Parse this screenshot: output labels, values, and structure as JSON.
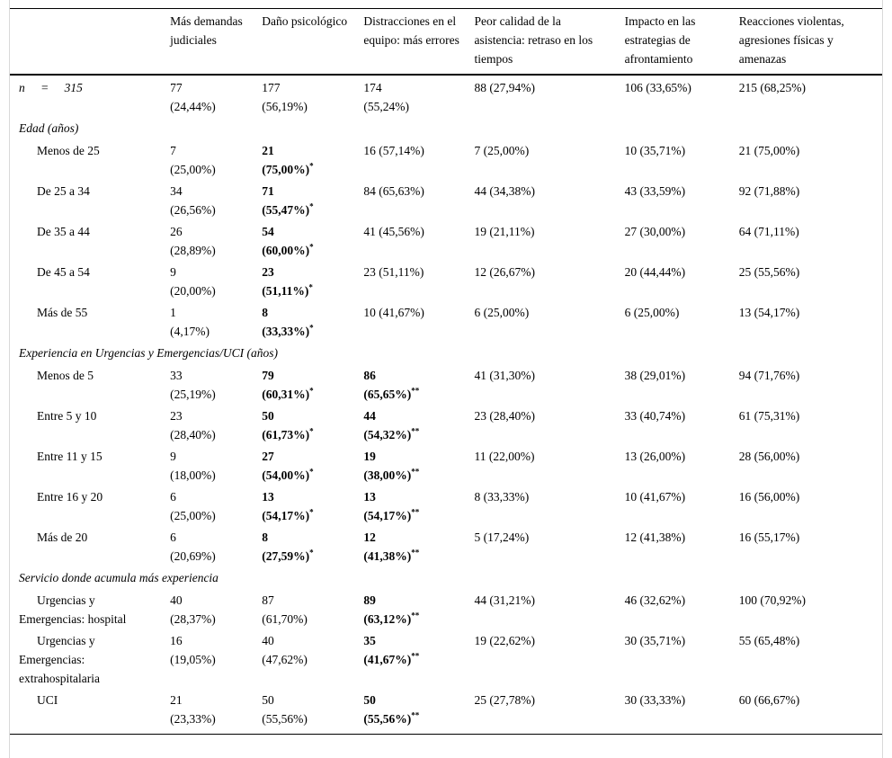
{
  "table": {
    "corner_label": "",
    "columns": [
      "Más demandas judiciales",
      "Daño psicológico",
      "Distracciones en el equipo: más errores",
      "Peor calidad de la asistencia: retraso en los tiempos",
      "Impacto en las estrategias de afrontamiento",
      "Reacciones violentas, agresiones físicas y amenazas"
    ],
    "rows": [
      {
        "type": "data",
        "style": "stat",
        "label": "n = 315",
        "cells": [
          {
            "lines": [
              "77",
              "(24,44%)"
            ]
          },
          {
            "lines": [
              "177",
              "(56,19%)"
            ]
          },
          {
            "lines": [
              "174",
              "(55,24%)"
            ]
          },
          {
            "lines": [
              "88 (27,94%)"
            ]
          },
          {
            "lines": [
              "106 (33,65%)"
            ]
          },
          {
            "lines": [
              "215 (68,25%)"
            ]
          }
        ]
      },
      {
        "type": "section",
        "label": "Edad (años)"
      },
      {
        "type": "data",
        "label": "Menos de 25",
        "cells": [
          {
            "lines": [
              "7",
              "(25,00%)"
            ]
          },
          {
            "lines": [
              "21",
              "(75,00%)"
            ],
            "bold": true,
            "sup": "*"
          },
          {
            "lines": [
              "16 (57,14%)"
            ]
          },
          {
            "lines": [
              "7 (25,00%)"
            ]
          },
          {
            "lines": [
              "10 (35,71%)"
            ]
          },
          {
            "lines": [
              "21 (75,00%)"
            ]
          }
        ]
      },
      {
        "type": "data",
        "label": "De 25 a 34",
        "cells": [
          {
            "lines": [
              "34",
              "(26,56%)"
            ]
          },
          {
            "lines": [
              "71",
              "(55,47%)"
            ],
            "bold": true,
            "sup": "*"
          },
          {
            "lines": [
              "84 (65,63%)"
            ]
          },
          {
            "lines": [
              "44 (34,38%)"
            ]
          },
          {
            "lines": [
              "43 (33,59%)"
            ]
          },
          {
            "lines": [
              "92 (71,88%)"
            ]
          }
        ]
      },
      {
        "type": "data",
        "label": "De 35 a 44",
        "cells": [
          {
            "lines": [
              "26",
              "(28,89%)"
            ]
          },
          {
            "lines": [
              "54",
              "(60,00%)"
            ],
            "bold": true,
            "sup": "*"
          },
          {
            "lines": [
              "41 (45,56%)"
            ]
          },
          {
            "lines": [
              "19 (21,11%)"
            ]
          },
          {
            "lines": [
              "27 (30,00%)"
            ]
          },
          {
            "lines": [
              "64 (71,11%)"
            ]
          }
        ]
      },
      {
        "type": "data",
        "label": "De 45 a 54",
        "cells": [
          {
            "lines": [
              "9",
              "(20,00%)"
            ]
          },
          {
            "lines": [
              "23",
              "(51,11%)"
            ],
            "bold": true,
            "sup": "*"
          },
          {
            "lines": [
              "23 (51,11%)"
            ]
          },
          {
            "lines": [
              "12 (26,67%)"
            ]
          },
          {
            "lines": [
              "20 (44,44%)"
            ]
          },
          {
            "lines": [
              "25 (55,56%)"
            ]
          }
        ]
      },
      {
        "type": "data",
        "label": "Más de 55",
        "cells": [
          {
            "lines": [
              "1",
              "(4,17%)"
            ]
          },
          {
            "lines": [
              "8",
              "(33,33%)"
            ],
            "bold": true,
            "sup": "*"
          },
          {
            "lines": [
              "10 (41,67%)"
            ]
          },
          {
            "lines": [
              "6 (25,00%)"
            ]
          },
          {
            "lines": [
              "6 (25,00%)"
            ]
          },
          {
            "lines": [
              "13 (54,17%)"
            ]
          }
        ]
      },
      {
        "type": "section",
        "label": "Experiencia en Urgencias y Emergencias/UCI (años)"
      },
      {
        "type": "data",
        "label": "Menos de 5",
        "cells": [
          {
            "lines": [
              "33",
              "(25,19%)"
            ]
          },
          {
            "lines": [
              "79",
              "(60,31%)"
            ],
            "bold": true,
            "sup": "*"
          },
          {
            "lines": [
              "86",
              "(65,65%)"
            ],
            "bold": true,
            "sup": "**"
          },
          {
            "lines": [
              "41 (31,30%)"
            ]
          },
          {
            "lines": [
              "38 (29,01%)"
            ]
          },
          {
            "lines": [
              "94 (71,76%)"
            ]
          }
        ]
      },
      {
        "type": "data",
        "label": "Entre 5 y 10",
        "cells": [
          {
            "lines": [
              "23",
              "(28,40%)"
            ]
          },
          {
            "lines": [
              "50",
              "(61,73%)"
            ],
            "bold": true,
            "sup": "*"
          },
          {
            "lines": [
              "44",
              "(54,32%)"
            ],
            "bold": true,
            "sup": "**"
          },
          {
            "lines": [
              "23 (28,40%)"
            ]
          },
          {
            "lines": [
              "33 (40,74%)"
            ]
          },
          {
            "lines": [
              "61 (75,31%)"
            ]
          }
        ]
      },
      {
        "type": "data",
        "label": "Entre 11 y 15",
        "cells": [
          {
            "lines": [
              "9",
              "(18,00%)"
            ]
          },
          {
            "lines": [
              "27",
              "(54,00%)"
            ],
            "bold": true,
            "sup": "*"
          },
          {
            "lines": [
              "19",
              "(38,00%)"
            ],
            "bold": true,
            "sup": "**"
          },
          {
            "lines": [
              "11 (22,00%)"
            ]
          },
          {
            "lines": [
              "13 (26,00%)"
            ]
          },
          {
            "lines": [
              "28 (56,00%)"
            ]
          }
        ]
      },
      {
        "type": "data",
        "label": "Entre 16 y 20",
        "cells": [
          {
            "lines": [
              "6",
              "(25,00%)"
            ]
          },
          {
            "lines": [
              "13",
              "(54,17%)"
            ],
            "bold": true,
            "sup": "*"
          },
          {
            "lines": [
              "13",
              "(54,17%)"
            ],
            "bold": true,
            "sup": "**"
          },
          {
            "lines": [
              "8 (33,33%)"
            ]
          },
          {
            "lines": [
              "10 (41,67%)"
            ]
          },
          {
            "lines": [
              "16 (56,00%)"
            ]
          }
        ]
      },
      {
        "type": "data",
        "label": "Más de 20",
        "cells": [
          {
            "lines": [
              "6",
              "(20,69%)"
            ]
          },
          {
            "lines": [
              "8",
              "(27,59%)"
            ],
            "bold": true,
            "sup": "*"
          },
          {
            "lines": [
              "12",
              "(41,38%)"
            ],
            "bold": true,
            "sup": "**"
          },
          {
            "lines": [
              "5 (17,24%)"
            ]
          },
          {
            "lines": [
              "12 (41,38%)"
            ]
          },
          {
            "lines": [
              "16 (55,17%)"
            ]
          }
        ]
      },
      {
        "type": "section",
        "label": "Servicio donde acumula más experiencia"
      },
      {
        "type": "data",
        "label": "Urgencias y Emergencias: hospital",
        "cells": [
          {
            "lines": [
              "40",
              "(28,37%)"
            ]
          },
          {
            "lines": [
              "87",
              "(61,70%)"
            ]
          },
          {
            "lines": [
              "89",
              "(63,12%)"
            ],
            "bold": true,
            "sup": "**"
          },
          {
            "lines": [
              "44 (31,21%)"
            ]
          },
          {
            "lines": [
              "46 (32,62%)"
            ]
          },
          {
            "lines": [
              "100 (70,92%)"
            ]
          }
        ]
      },
      {
        "type": "data",
        "label": "Urgencias y Emergencias: extrahospitalaria",
        "cells": [
          {
            "lines": [
              "16",
              "(19,05%)"
            ]
          },
          {
            "lines": [
              "40",
              "(47,62%)"
            ]
          },
          {
            "lines": [
              "35",
              "(41,67%)"
            ],
            "bold": true,
            "sup": "**"
          },
          {
            "lines": [
              "19 (22,62%)"
            ]
          },
          {
            "lines": [
              "30 (35,71%)"
            ]
          },
          {
            "lines": [
              "55 (65,48%)"
            ]
          }
        ]
      },
      {
        "type": "data",
        "label": "UCI",
        "cells": [
          {
            "lines": [
              "21",
              "(23,33%)"
            ]
          },
          {
            "lines": [
              "50",
              "(55,56%)"
            ]
          },
          {
            "lines": [
              "50",
              "(55,56%)"
            ],
            "bold": true,
            "sup": "**"
          },
          {
            "lines": [
              "25 (27,78%)"
            ]
          },
          {
            "lines": [
              "30 (33,33%)"
            ]
          },
          {
            "lines": [
              "60 (66,67%)"
            ]
          }
        ]
      }
    ],
    "colors": {
      "text": "#000000",
      "rule": "#000000",
      "frame_border": "#d9d9d9",
      "background": "#ffffff"
    }
  }
}
